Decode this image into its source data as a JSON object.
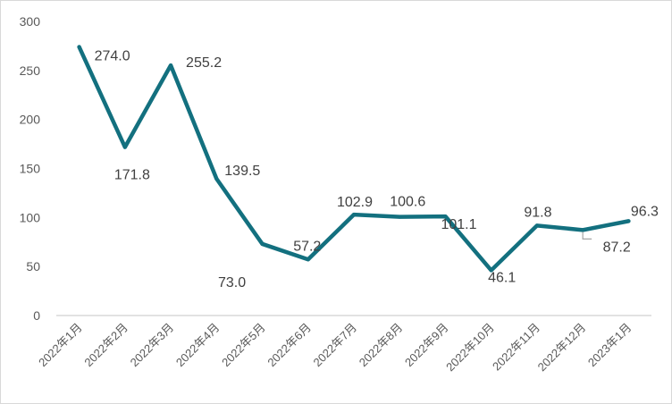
{
  "chart_data": {
    "type": "line",
    "title": "",
    "xlabel": "",
    "ylabel": "",
    "categories": [
      "2022年1月",
      "2022年2月",
      "2022年3月",
      "2022年4月",
      "2022年5月",
      "2022年6月",
      "2022年7月",
      "2022年8月",
      "2022年9月",
      "2022年10月",
      "2022年11月",
      "2022年12月",
      "2023年1月"
    ],
    "series": [
      {
        "name": "",
        "values": [
          274.0,
          171.8,
          255.2,
          139.5,
          73.0,
          57.2,
          102.9,
          100.6,
          101.1,
          46.1,
          91.8,
          87.2,
          96.3
        ],
        "color": "#13707f"
      }
    ],
    "value_labels": [
      "274.0",
      "171.8",
      "255.2",
      "139.5",
      "73.0",
      "57.2",
      "102.9",
      "100.6",
      "101.1",
      "46.1",
      "91.8",
      "87.2",
      "96.3"
    ],
    "yticks": [
      "0",
      "50",
      "100",
      "150",
      "200",
      "250",
      "300"
    ],
    "ylim": [
      0,
      300
    ],
    "grid": false,
    "legend": "none"
  }
}
